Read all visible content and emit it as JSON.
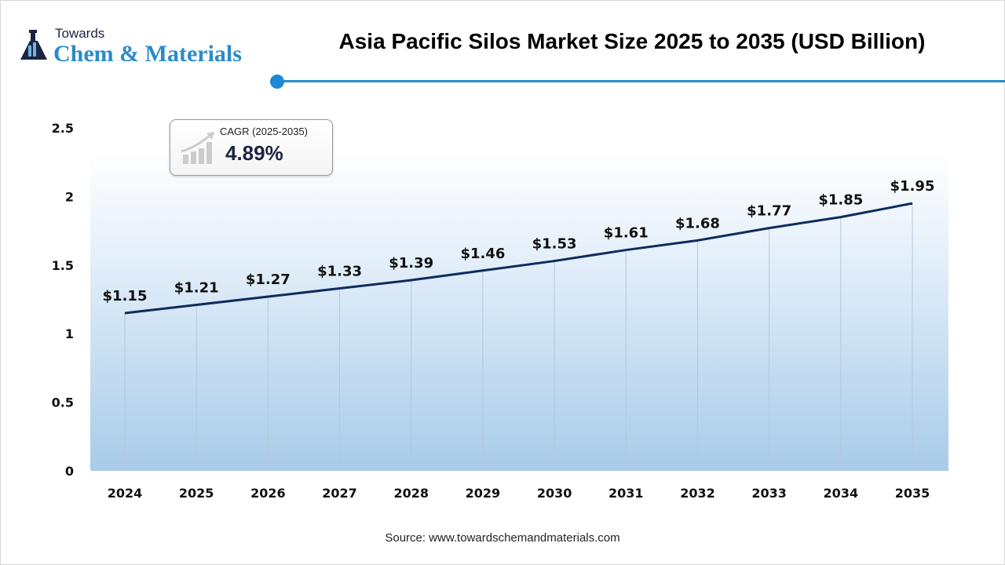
{
  "header": {
    "logo_top": "Towards",
    "logo_main": "Chem & Materials",
    "title": "Asia Pacific Silos Market Size 2025 to 2035 (USD Billion)"
  },
  "cagr": {
    "label": "CAGR (2025-2035)",
    "value": "4.89%"
  },
  "source": "Source: www.towardschemandmaterials.com",
  "colors": {
    "line": "#0d2b5e",
    "area": "#a8cbe9",
    "accent": "#2a8cc8"
  },
  "chart_data": {
    "type": "area",
    "title": "Asia Pacific Silos Market Size 2025 to 2035 (USD Billion)",
    "categories": [
      "2024",
      "2025",
      "2026",
      "2027",
      "2028",
      "2029",
      "2030",
      "2031",
      "2032",
      "2033",
      "2034",
      "2035"
    ],
    "values": [
      1.15,
      1.21,
      1.27,
      1.33,
      1.39,
      1.46,
      1.53,
      1.61,
      1.68,
      1.77,
      1.85,
      1.95
    ],
    "data_labels": [
      "$1.15",
      "$1.21",
      "$1.27",
      "$1.33",
      "$1.39",
      "$1.46",
      "$1.53",
      "$1.61",
      "$1.68",
      "$1.77",
      "$1.85",
      "$1.95"
    ],
    "yticks": [
      "0",
      "0.5",
      "1",
      "1.5",
      "2",
      "2.5"
    ],
    "ylim": [
      0,
      2.5
    ],
    "xlabel": "",
    "ylabel": "",
    "grid": "vertical lines at categories",
    "legend": "none"
  }
}
